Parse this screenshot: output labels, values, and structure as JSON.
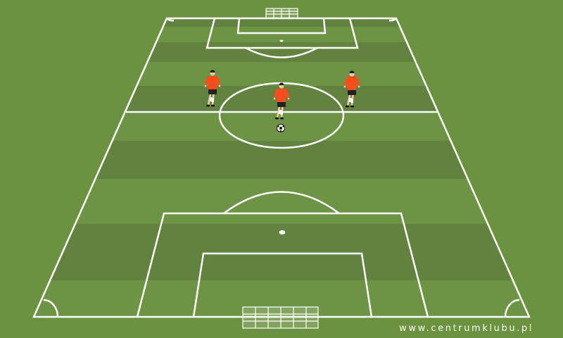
{
  "watermark": "www.centrumklubu.pl",
  "colors": {
    "background": "#6b923f",
    "pitch_light": "#6d9444",
    "pitch_dark": "#62823f",
    "lines": "#ffffff",
    "shirt": "#ff4a1c",
    "shorts": "#222222"
  },
  "players": [
    {
      "name": "left-attacker"
    },
    {
      "name": "center-attacker"
    },
    {
      "name": "right-attacker"
    }
  ],
  "ball": {
    "name": "soccer-ball"
  }
}
